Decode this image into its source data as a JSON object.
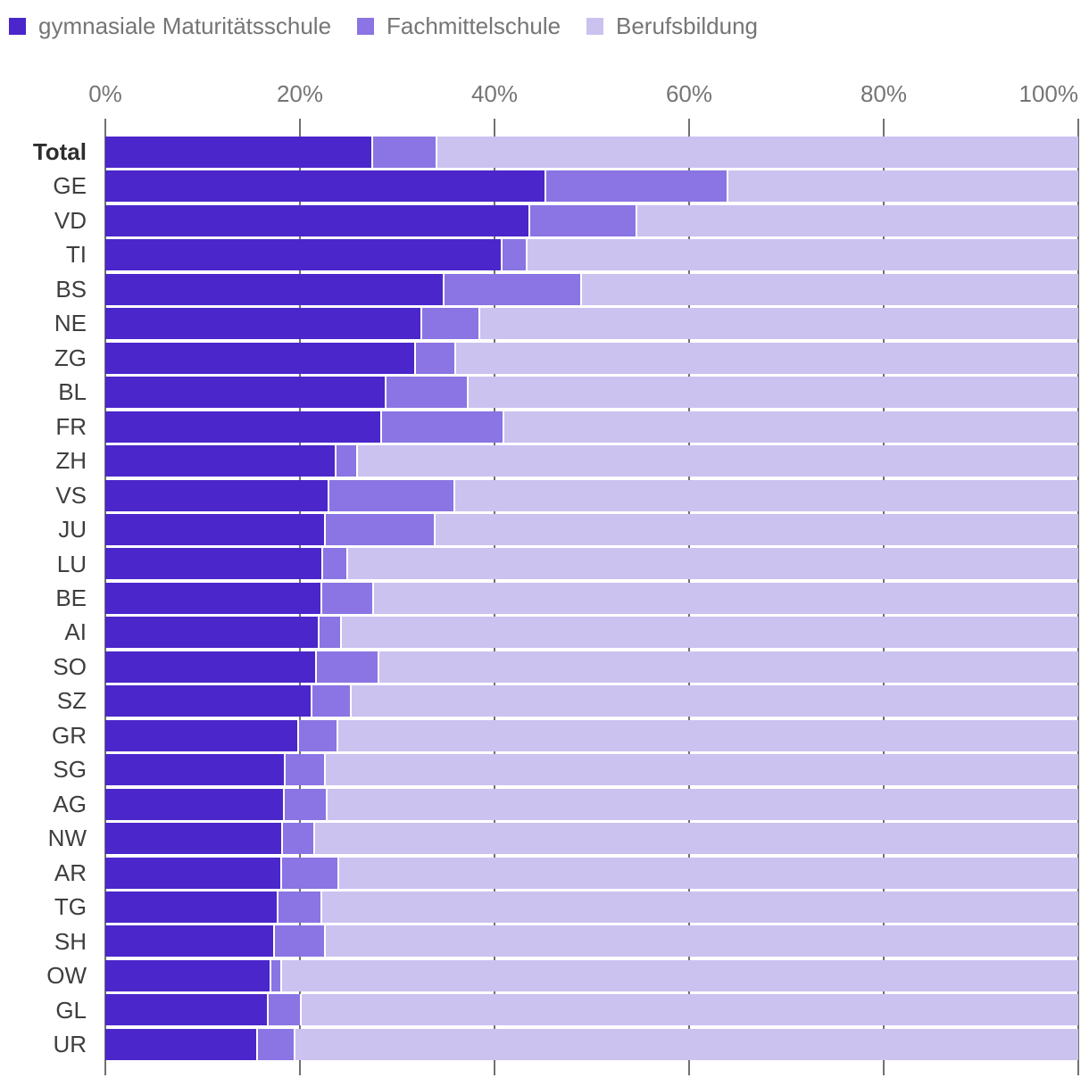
{
  "legend": {
    "items": [
      {
        "label": "gymnasiale Maturitätsschule",
        "color": "#4b26cb"
      },
      {
        "label": "Fachmittelschule",
        "color": "#8b74e3"
      },
      {
        "label": "Berufsbildung",
        "color": "#cbc2f0"
      }
    ]
  },
  "chart_data": {
    "type": "bar",
    "orientation": "horizontal",
    "stacked": true,
    "unit": "percent",
    "xlim": [
      0,
      100
    ],
    "grid": true,
    "legend_position": "top",
    "ticks": [
      {
        "value": 0,
        "label": "0%"
      },
      {
        "value": 20,
        "label": "20%"
      },
      {
        "value": 40,
        "label": "40%"
      },
      {
        "value": 60,
        "label": "60%"
      },
      {
        "value": 80,
        "label": "80%"
      },
      {
        "value": 100,
        "label": "100%"
      }
    ],
    "emphasized_category": "Total",
    "categories": [
      "Total",
      "GE",
      "VD",
      "TI",
      "BS",
      "NE",
      "ZG",
      "BL",
      "FR",
      "ZH",
      "VS",
      "JU",
      "LU",
      "BE",
      "AI",
      "SO",
      "SZ",
      "GR",
      "SG",
      "AG",
      "NW",
      "AR",
      "TG",
      "SH",
      "OW",
      "GL",
      "UR"
    ],
    "series": [
      {
        "name": "gymnasiale Maturitätsschule",
        "color": "#4b26cb",
        "values": [
          27.5,
          45.3,
          43.7,
          40.8,
          34.9,
          32.6,
          31.9,
          28.9,
          28.4,
          23.8,
          23.0,
          22.7,
          22.4,
          22.3,
          22.0,
          21.7,
          21.3,
          19.9,
          18.5,
          18.4,
          18.3,
          18.2,
          17.8,
          17.4,
          17.1,
          16.8,
          15.7
        ]
      },
      {
        "name": "Fachmittelschule",
        "color": "#8b74e3",
        "values": [
          6.6,
          18.7,
          11.0,
          2.6,
          14.1,
          5.9,
          4.2,
          8.4,
          12.6,
          2.2,
          13.0,
          11.2,
          2.6,
          5.3,
          2.3,
          6.5,
          4.0,
          4.0,
          4.2,
          4.4,
          3.3,
          5.8,
          4.5,
          5.3,
          1.1,
          3.4,
          3.8
        ]
      },
      {
        "name": "Berufsbildung",
        "color": "#cbc2f0",
        "values": [
          65.9,
          36.0,
          45.3,
          56.6,
          51.0,
          61.5,
          63.9,
          62.7,
          59.0,
          74.0,
          64.0,
          66.1,
          75.0,
          72.4,
          75.7,
          71.8,
          74.7,
          76.1,
          77.3,
          77.2,
          78.4,
          76.0,
          77.7,
          77.3,
          81.8,
          79.8,
          80.5
        ]
      }
    ]
  },
  "styles": {
    "gridline_color": "#717171",
    "axis_label_color": "#757575",
    "legend_label_color": "#757575",
    "category_label_color": "#3e3e3e",
    "background": "#ffffff"
  }
}
